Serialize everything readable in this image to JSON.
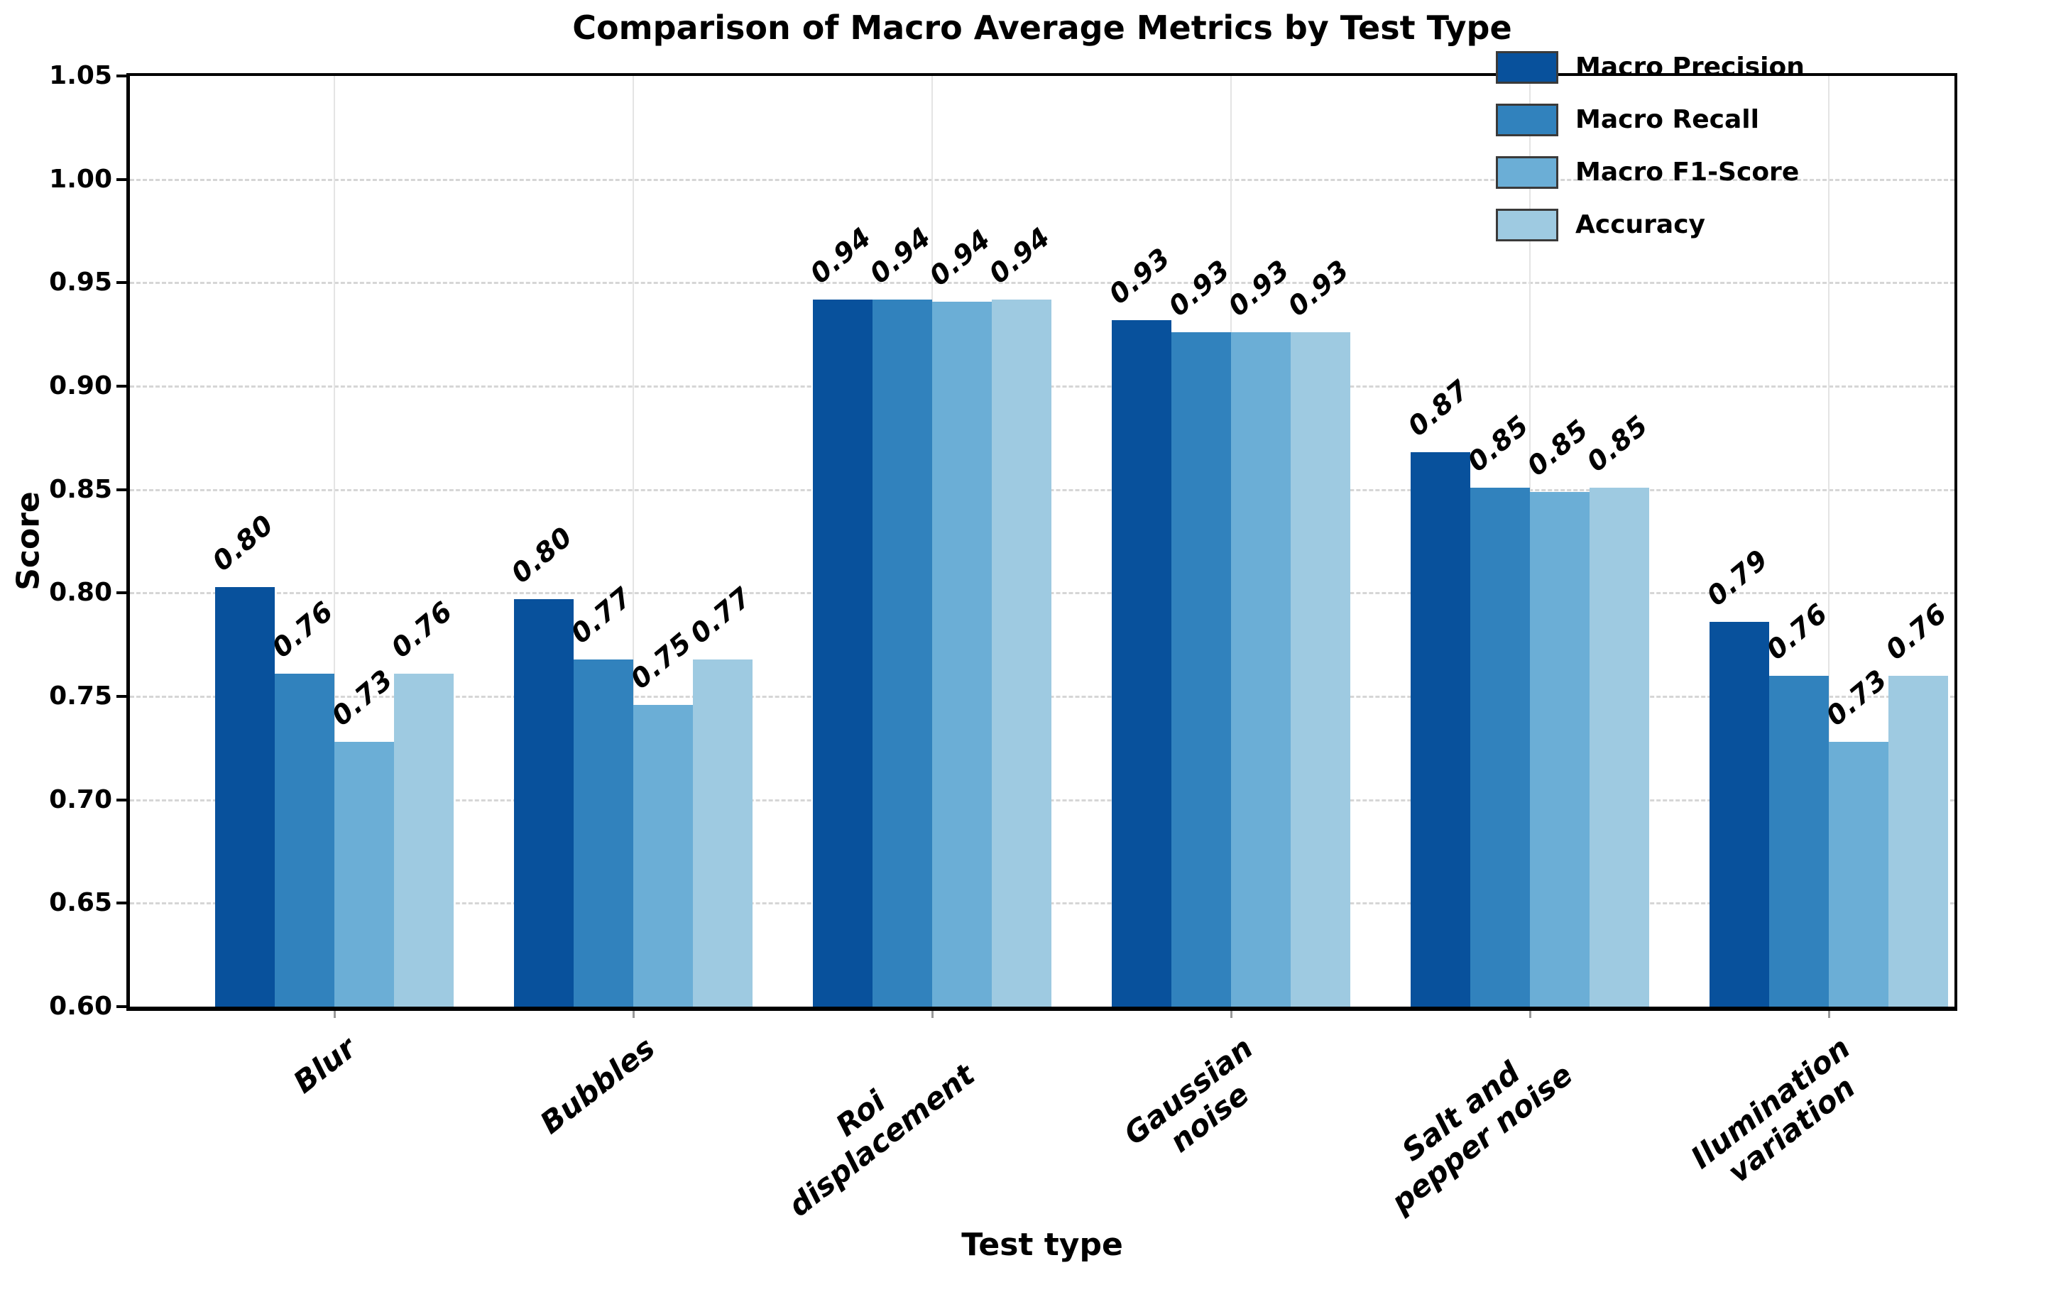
{
  "page": {
    "background": "#ffffff"
  },
  "chart_data": {
    "type": "bar",
    "title": "Comparison of Macro Average Metrics by Test Type",
    "xlabel": "Test type",
    "ylabel": "Score",
    "ylim": [
      0.6,
      1.05
    ],
    "yticks": [
      "0.60",
      "0.65",
      "0.70",
      "0.75",
      "0.80",
      "0.85",
      "0.90",
      "0.95",
      "1.00",
      "1.05"
    ],
    "grid": {
      "horizontal": "dashed-light-gray",
      "vertical": "solid-light-gray-at-group-centers"
    },
    "legend": {
      "position": "upper-right",
      "frame": false
    },
    "categories": [
      [
        "Blur"
      ],
      [
        "Bubbles"
      ],
      [
        "Roi",
        "displacement"
      ],
      [
        "Gaussian",
        "noise"
      ],
      [
        "Salt and",
        "pepper noise"
      ],
      [
        "Ilumination",
        "variation"
      ]
    ],
    "series": [
      {
        "name": "Macro Precision",
        "color": "#08519c",
        "values": [
          0.803,
          0.797,
          0.942,
          0.932,
          0.868,
          0.786
        ],
        "labels": [
          "0.80",
          "0.80",
          "0.94",
          "0.93",
          "0.87",
          "0.79"
        ]
      },
      {
        "name": "Macro Recall",
        "color": "#3182bd",
        "values": [
          0.761,
          0.768,
          0.942,
          0.926,
          0.851,
          0.76
        ],
        "labels": [
          "0.76",
          "0.77",
          "0.94",
          "0.93",
          "0.85",
          "0.76"
        ]
      },
      {
        "name": "Macro F1-Score",
        "color": "#6baed6",
        "values": [
          0.728,
          0.746,
          0.941,
          0.926,
          0.849,
          0.728
        ],
        "labels": [
          "0.73",
          "0.75",
          "0.94",
          "0.93",
          "0.85",
          "0.73"
        ]
      },
      {
        "name": "Accuracy",
        "color": "#9ecae1",
        "values": [
          0.761,
          0.768,
          0.942,
          0.926,
          0.851,
          0.76
        ],
        "labels": [
          "0.76",
          "0.77",
          "0.94",
          "0.93",
          "0.85",
          "0.76"
        ]
      }
    ]
  }
}
